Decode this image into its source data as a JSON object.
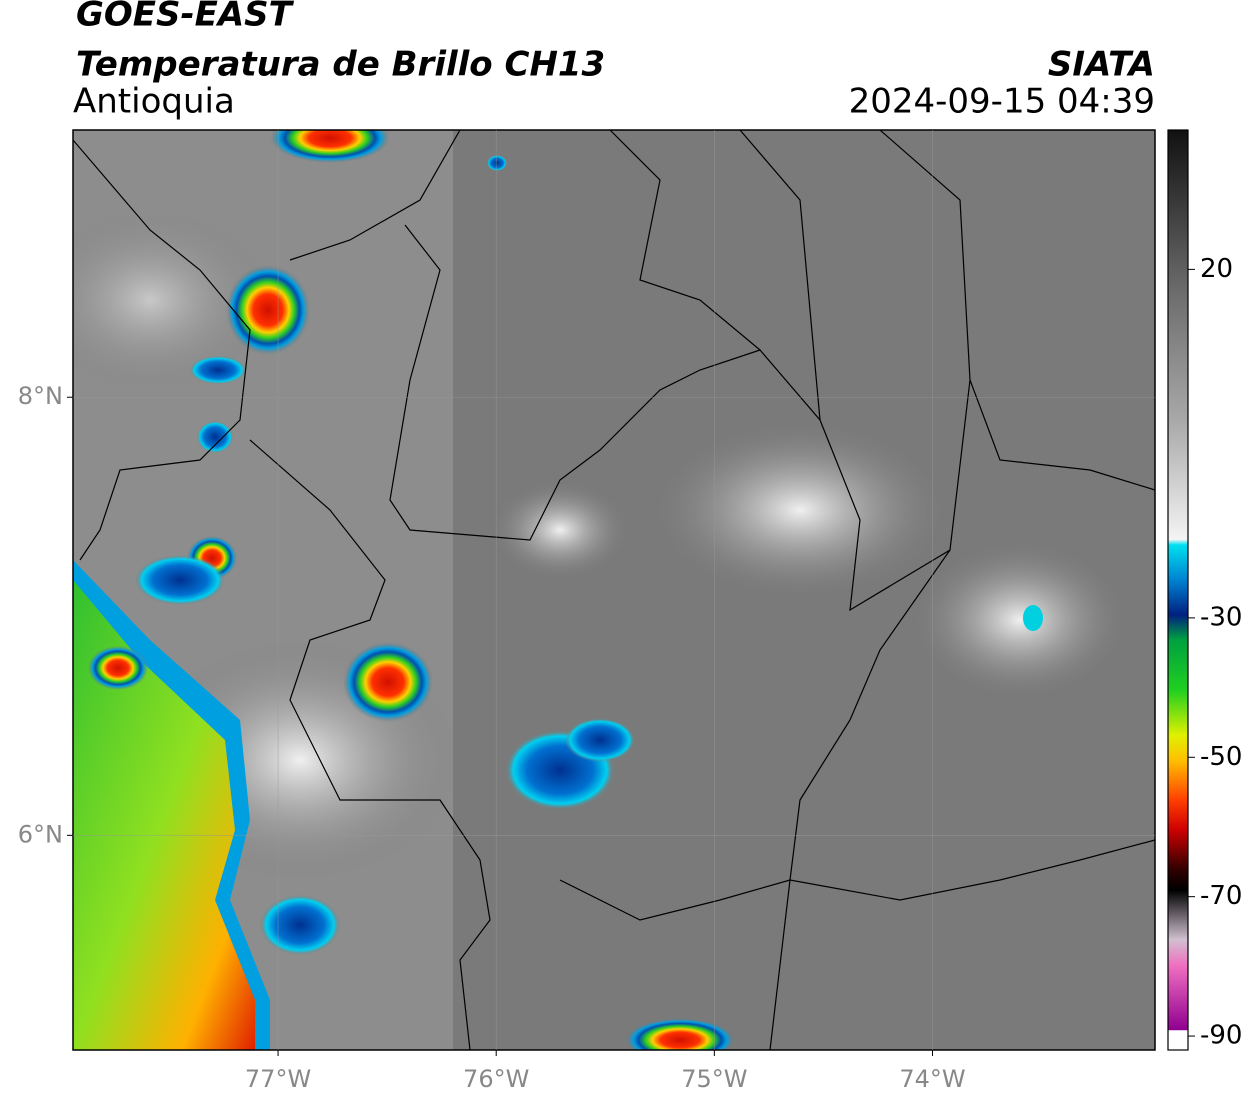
{
  "header": {
    "title": "GOES-EAST",
    "subtitle": "Temperatura de Brillo CH13",
    "region": "Antioquia",
    "source": "SIATA",
    "datetime": "2024-09-15 04:39"
  },
  "map": {
    "xlim": [
      -77.94,
      -72.98
    ],
    "ylim": [
      5.02,
      9.22
    ],
    "xticks": [
      {
        "value": -77,
        "label": "77°W"
      },
      {
        "value": -76,
        "label": "76°W"
      },
      {
        "value": -75,
        "label": "75°W"
      },
      {
        "value": -74,
        "label": "74°W"
      }
    ],
    "yticks": [
      {
        "value": 6,
        "label": "6°N"
      },
      {
        "value": 8,
        "label": "8°N"
      }
    ],
    "grid": true
  },
  "colorbar": {
    "clim": [
      -92,
      40
    ],
    "ticks": [
      -90,
      -70,
      -50,
      -30,
      20
    ]
  }
}
